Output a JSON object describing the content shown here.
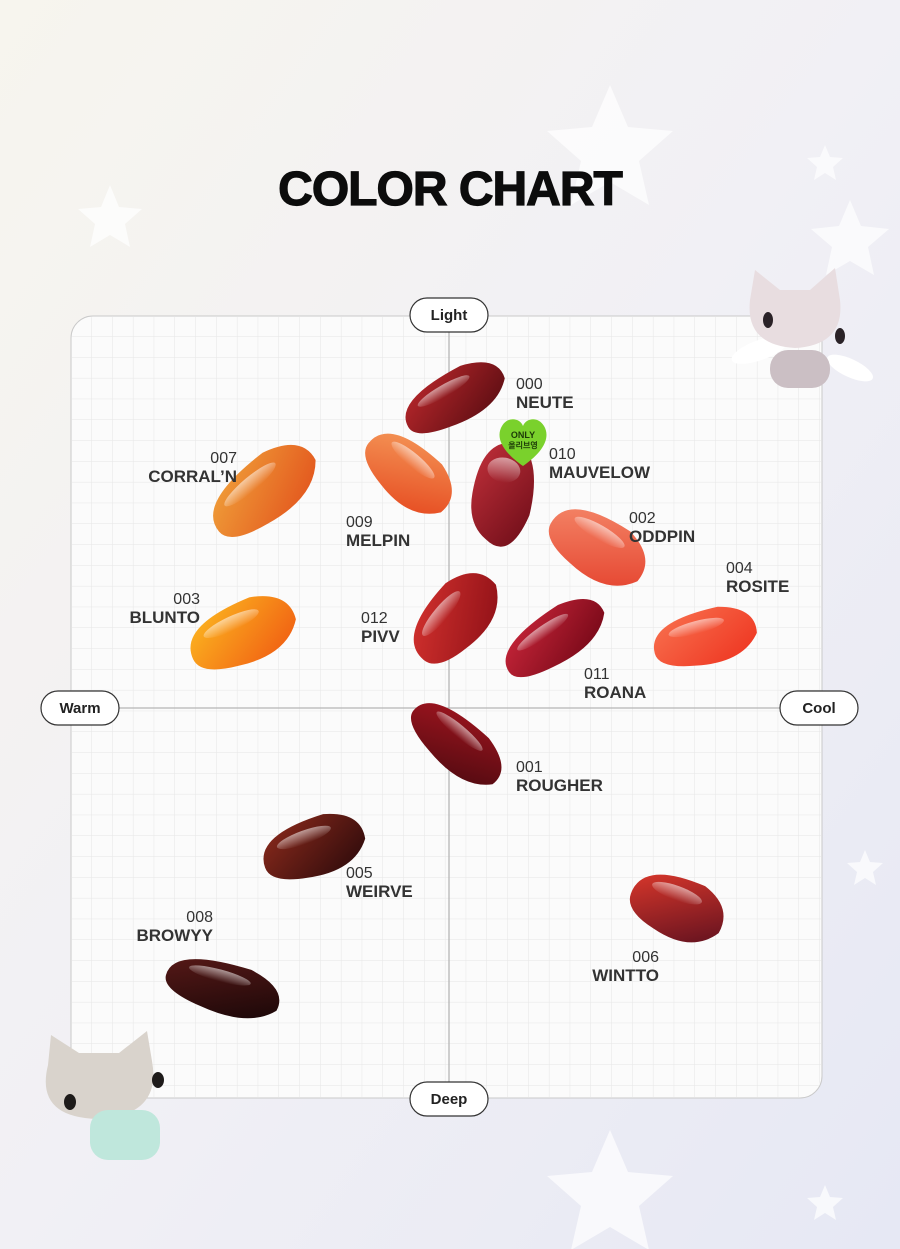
{
  "header": {
    "title": "COLOR CHART"
  },
  "axes": {
    "top": "Light",
    "bottom": "Deep",
    "left": "Warm",
    "right": "Cool"
  },
  "badge": {
    "lines": [
      "ONLY",
      "올리브영"
    ]
  },
  "items": [
    {
      "code": "000",
      "name": "NEUTE"
    },
    {
      "code": "010",
      "name": "MAUVELOW"
    },
    {
      "code": "007",
      "name": "CORRAL’N"
    },
    {
      "code": "009",
      "name": "MELPIN"
    },
    {
      "code": "002",
      "name": "ODDPIN"
    },
    {
      "code": "004",
      "name": "ROSITE"
    },
    {
      "code": "003",
      "name": "BLUNTO"
    },
    {
      "code": "012",
      "name": "PIVV"
    },
    {
      "code": "011",
      "name": "ROANA"
    },
    {
      "code": "001",
      "name": "ROUGHER"
    },
    {
      "code": "005",
      "name": "WEIRVE"
    },
    {
      "code": "008",
      "name": "BROWYY"
    },
    {
      "code": "006",
      "name": "WINTTO"
    }
  ]
}
